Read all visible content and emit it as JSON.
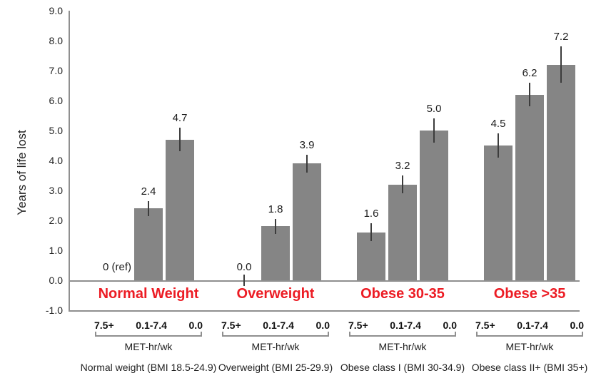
{
  "chart_data": {
    "type": "bar",
    "title": "",
    "ylabel": "Years of life lost",
    "xlabel": "",
    "ylim": [
      -1.0,
      9.0
    ],
    "grid": false,
    "legend": "none",
    "y_ticks": [
      "9.0",
      "8.0",
      "7.0",
      "6.0",
      "5.0",
      "4.0",
      "3.0",
      "2.0",
      "1.0",
      "0.0",
      "-1.0"
    ],
    "bar_color": "#858585",
    "group_label_color": "#ec1c24",
    "met_axis_title": "MET-hr/wk",
    "met_categories": [
      "7.5+",
      "0.1-7.4",
      "0.0"
    ],
    "groups": [
      {
        "label": "Normal Weight",
        "caption": "Normal weight (BMI 18.5-24.9)",
        "bars": [
          {
            "met": "7.5+",
            "value": 0,
            "display": "0 (ref)",
            "error": 0
          },
          {
            "met": "0.1-7.4",
            "value": 2.4,
            "display": "2.4",
            "error": 0.25
          },
          {
            "met": "0.0",
            "value": 4.7,
            "display": "4.7",
            "error": 0.4
          }
        ]
      },
      {
        "label": "Overweight",
        "caption": "Overweight (BMI 25-29.9)",
        "bars": [
          {
            "met": "7.5+",
            "value": 0,
            "display": "0.0",
            "error": 0.2
          },
          {
            "met": "0.1-7.4",
            "value": 1.8,
            "display": "1.8",
            "error": 0.25
          },
          {
            "met": "0.0",
            "value": 3.9,
            "display": "3.9",
            "error": 0.3
          }
        ]
      },
      {
        "label": "Obese 30-35",
        "caption": "Obese class I (BMI 30-34.9)",
        "bars": [
          {
            "met": "7.5+",
            "value": 1.6,
            "display": "1.6",
            "error": 0.3
          },
          {
            "met": "0.1-7.4",
            "value": 3.2,
            "display": "3.2",
            "error": 0.3
          },
          {
            "met": "0.0",
            "value": 5.0,
            "display": "5.0",
            "error": 0.4
          }
        ]
      },
      {
        "label": "Obese >35",
        "caption": "Obese class II+ (BMI 35+)",
        "bars": [
          {
            "met": "7.5+",
            "value": 4.5,
            "display": "4.5",
            "error": 0.4
          },
          {
            "met": "0.1-7.4",
            "value": 6.2,
            "display": "6.2",
            "error": 0.4
          },
          {
            "met": "0.0",
            "value": 7.2,
            "display": "7.2",
            "error": 0.6
          }
        ]
      }
    ]
  }
}
